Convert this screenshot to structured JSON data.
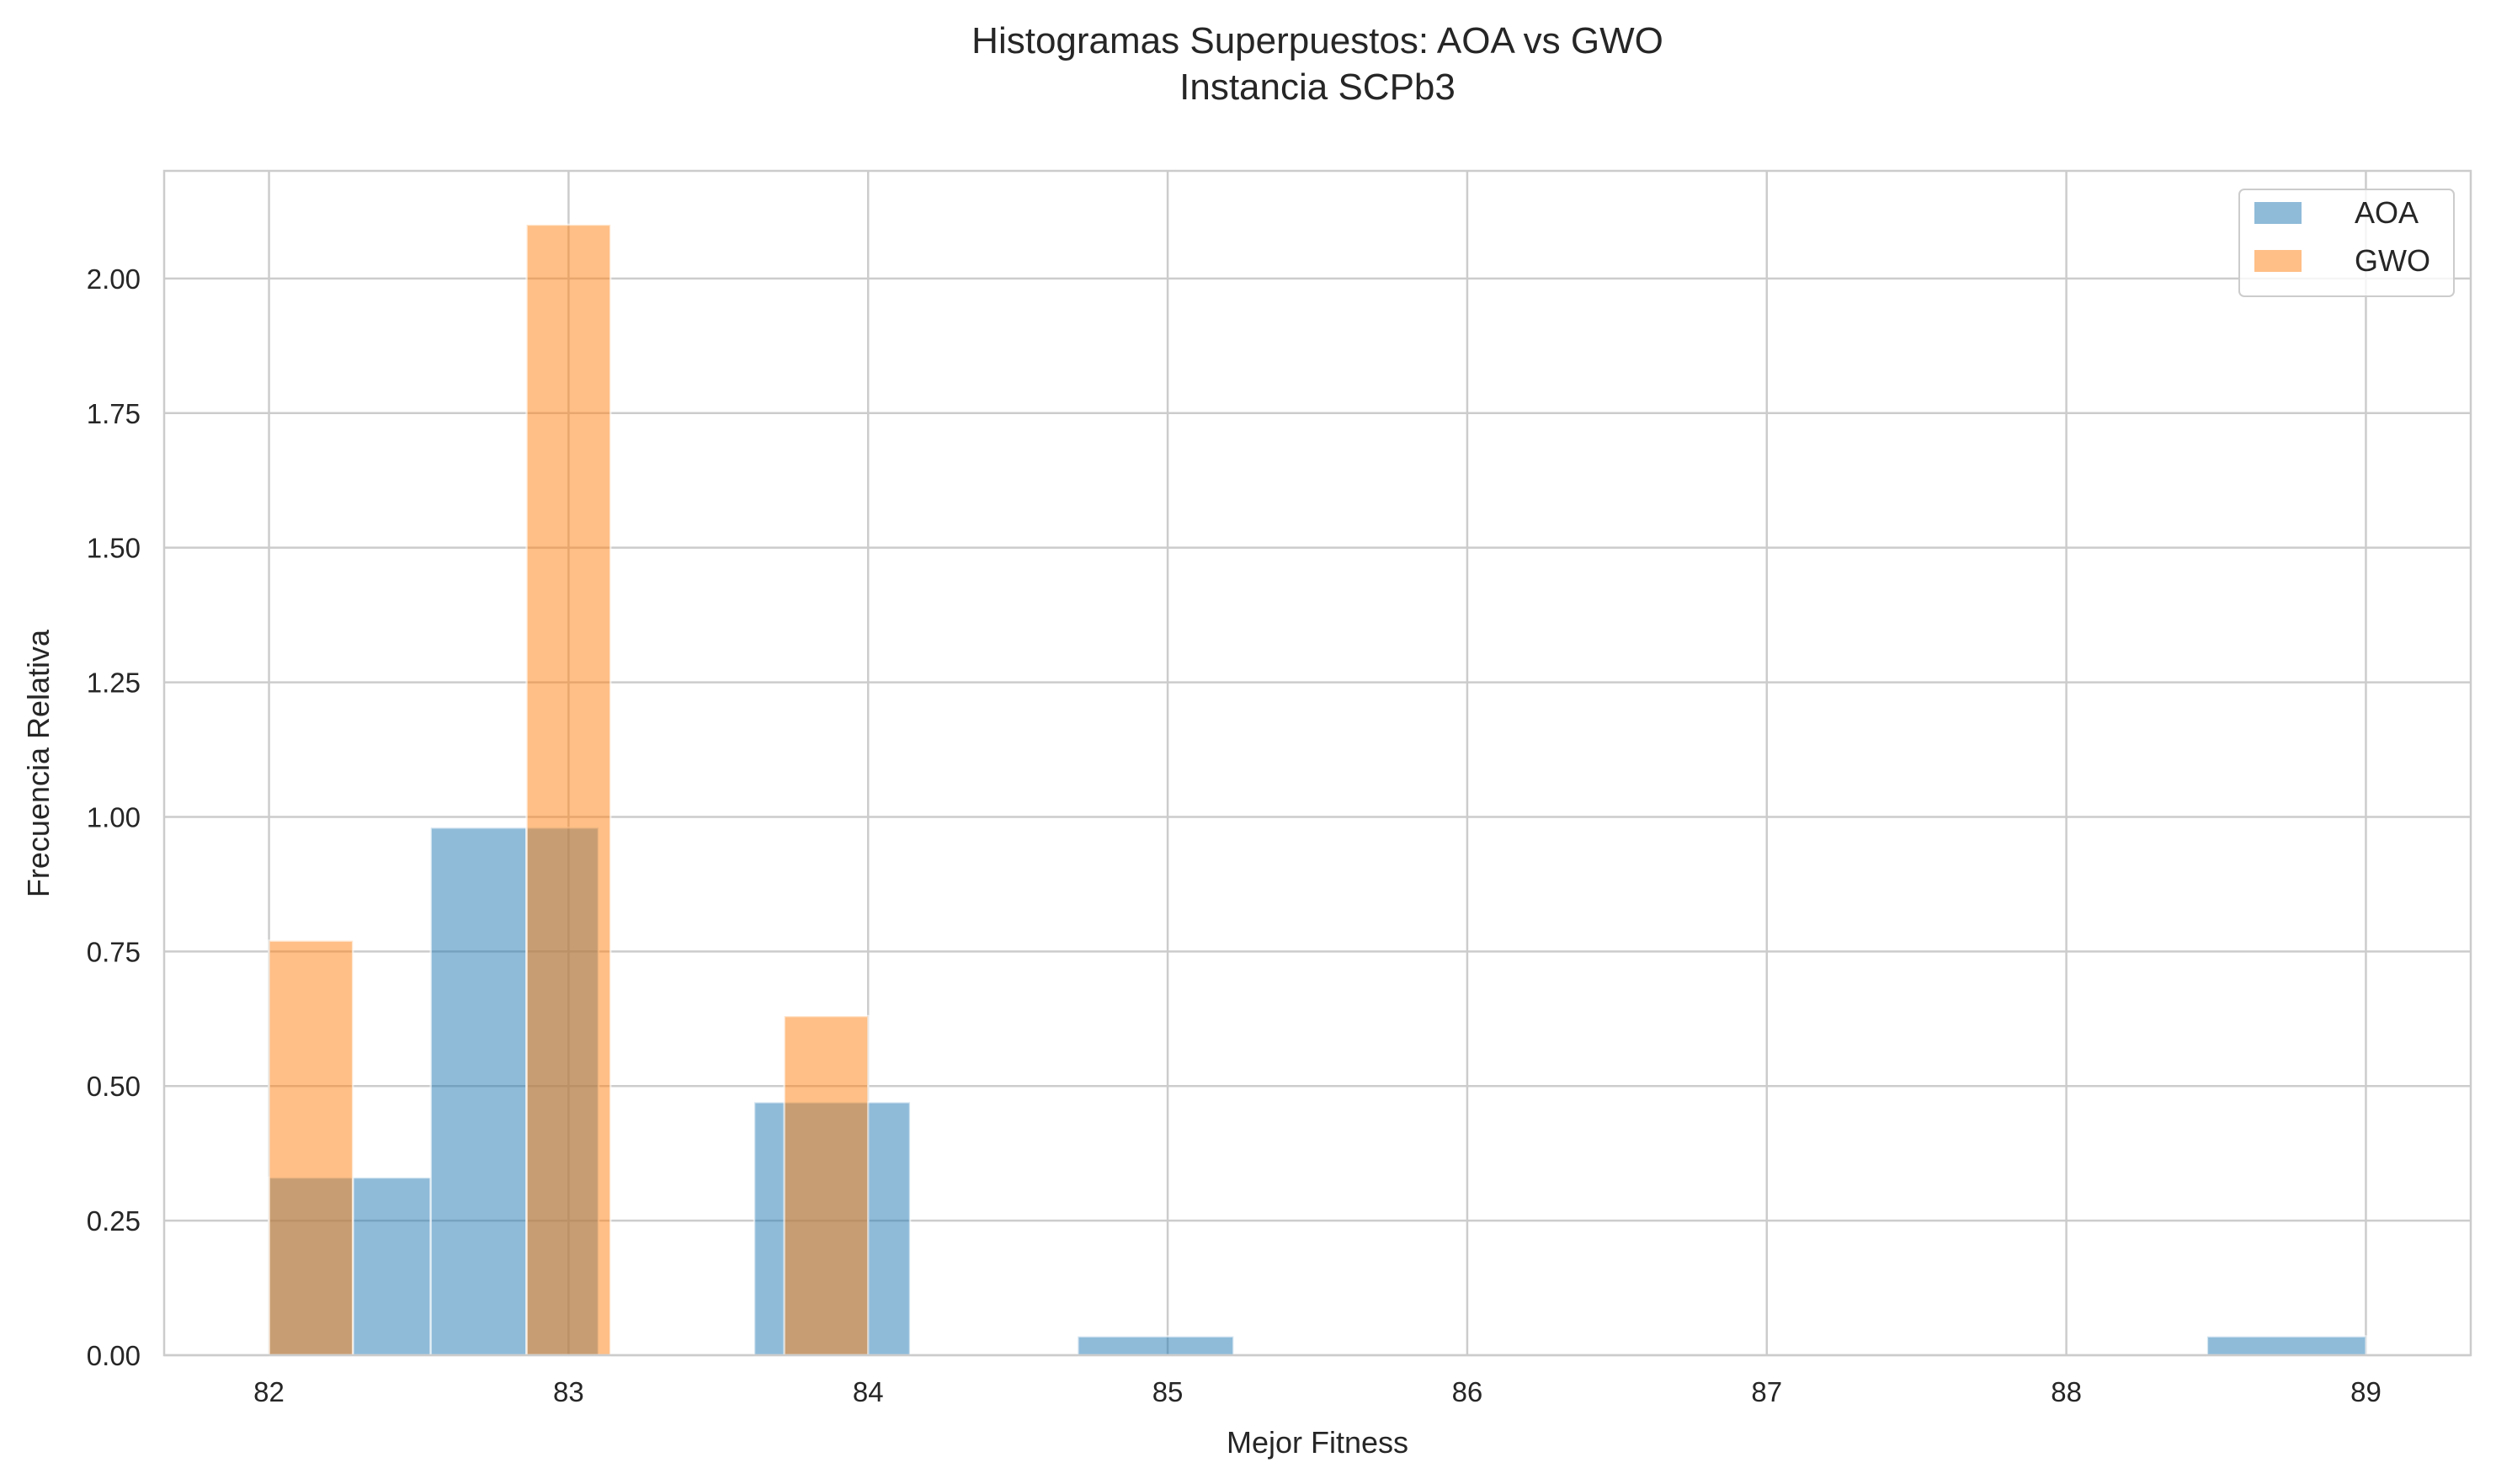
{
  "chart_data": {
    "type": "bar",
    "title": "Histogramas Superpuestos: AOA vs GWO",
    "subtitle": "Instancia SCPb3",
    "xlabel": "Mejor Fitness",
    "ylabel": "Frecuencia Relativa",
    "xlim": [
      81.65,
      89.35
    ],
    "ylim": [
      0,
      2.2
    ],
    "xticks": [
      82,
      83,
      84,
      85,
      86,
      87,
      88,
      89
    ],
    "yticks": [
      0,
      0.25,
      0.5,
      0.75,
      1.0,
      1.25,
      1.5,
      1.75,
      2.0
    ],
    "xtick_labels": [
      "82",
      "83",
      "84",
      "85",
      "86",
      "87",
      "88",
      "89"
    ],
    "ytick_labels": [
      "0.00",
      "0.25",
      "0.50",
      "0.75",
      "1.00",
      "1.25",
      "1.50",
      "1.75",
      "2.00"
    ],
    "grid": true,
    "legend_position": "top-right",
    "series": [
      {
        "name": "AOA",
        "color": "#1f77b4",
        "opacity": 0.5,
        "bins": [
          {
            "x0": 82.0,
            "x1": 82.28,
            "value": 0.33
          },
          {
            "x0": 82.28,
            "x1": 82.54,
            "value": 0.33
          },
          {
            "x0": 82.54,
            "x1": 82.86,
            "value": 0.98
          },
          {
            "x0": 82.86,
            "x1": 83.1,
            "value": 0.98
          },
          {
            "x0": 83.62,
            "x1": 84.14,
            "value": 0.47
          },
          {
            "x0": 84.7,
            "x1": 85.22,
            "value": 0.035
          },
          {
            "x0": 88.47,
            "x1": 89.0,
            "value": 0.035
          }
        ]
      },
      {
        "name": "GWO",
        "color": "#ff7f0e",
        "opacity": 0.5,
        "bins": [
          {
            "x0": 82.0,
            "x1": 82.28,
            "value": 0.77
          },
          {
            "x0": 82.86,
            "x1": 83.14,
            "value": 2.1
          },
          {
            "x0": 83.72,
            "x1": 84.0,
            "value": 0.63
          }
        ]
      }
    ]
  }
}
